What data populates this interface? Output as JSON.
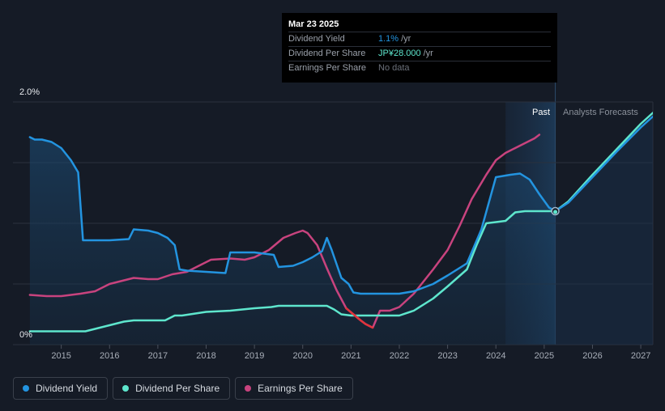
{
  "tooltip": {
    "date": "Mar 23 2025",
    "rows": [
      {
        "label": "Dividend Yield",
        "value": "1.1%",
        "unit": "/yr",
        "color": "#2394e0"
      },
      {
        "label": "Dividend Per Share",
        "value": "JP¥28.000",
        "unit": "/yr",
        "color": "#5ee6cd"
      },
      {
        "label": "Earnings Per Share",
        "value": "No data",
        "unit": "",
        "color": "#6b707a"
      }
    ]
  },
  "segments": {
    "past": "Past",
    "forecast": "Analysts Forecasts"
  },
  "legend": [
    {
      "label": "Dividend Yield",
      "color": "#2394e0"
    },
    {
      "label": "Dividend Per Share",
      "color": "#5ee6cd"
    },
    {
      "label": "Earnings Per Share",
      "color": "#c8437e"
    }
  ],
  "chart_data": {
    "type": "line",
    "title": "",
    "xlabel": "",
    "ylabel": "",
    "xlim": [
      2014.0,
      2027.25
    ],
    "ylim": [
      0,
      2.0
    ],
    "y_tick_labels": [
      "0%",
      "2.0%"
    ],
    "y_ticks": [
      0,
      2.0
    ],
    "x_ticks": [
      2015,
      2016,
      2017,
      2018,
      2019,
      2020,
      2021,
      2022,
      2023,
      2024,
      2025,
      2026,
      2027
    ],
    "x_tick_labels": [
      "2015",
      "2016",
      "2017",
      "2018",
      "2019",
      "2020",
      "2021",
      "2022",
      "2023",
      "2024",
      "2025",
      "2026",
      "2027"
    ],
    "gridlines": [
      0,
      0.5,
      1.0,
      1.5,
      2.0
    ],
    "forecast_start": 2025.23,
    "highlight_range": [
      2024.2,
      2025.23
    ],
    "marker": {
      "x": 2025.23,
      "y": 1.1
    },
    "series": [
      {
        "name": "Dividend Yield",
        "color": "#2394e0",
        "x": [
          2014.35,
          2014.45,
          2014.6,
          2014.8,
          2015.0,
          2015.2,
          2015.35,
          2015.45,
          2015.55,
          2016.0,
          2016.4,
          2016.5,
          2016.8,
          2017.0,
          2017.2,
          2017.35,
          2017.45,
          2017.6,
          2018.0,
          2018.4,
          2018.5,
          2019.0,
          2019.4,
          2019.5,
          2019.8,
          2020.0,
          2020.2,
          2020.4,
          2020.5,
          2020.6,
          2020.8,
          2020.95,
          2021.05,
          2021.2,
          2021.5,
          2022.0,
          2022.3,
          2022.7,
          2023.0,
          2023.4,
          2023.7,
          2024.0,
          2024.3,
          2024.5,
          2024.7,
          2024.9,
          2025.1,
          2025.23
        ],
        "y": [
          1.71,
          1.69,
          1.69,
          1.67,
          1.62,
          1.52,
          1.42,
          0.86,
          0.86,
          0.86,
          0.87,
          0.95,
          0.94,
          0.92,
          0.88,
          0.82,
          0.62,
          0.61,
          0.6,
          0.59,
          0.76,
          0.76,
          0.74,
          0.64,
          0.65,
          0.68,
          0.72,
          0.77,
          0.88,
          0.78,
          0.55,
          0.5,
          0.43,
          0.42,
          0.42,
          0.42,
          0.44,
          0.5,
          0.57,
          0.67,
          0.95,
          1.38,
          1.4,
          1.41,
          1.36,
          1.24,
          1.13,
          1.1
        ]
      },
      {
        "name": "Dividend Per Share",
        "color": "#5ee6cd",
        "x": [
          2014.35,
          2015.0,
          2015.5,
          2015.7,
          2016.0,
          2016.3,
          2016.5,
          2017.0,
          2017.15,
          2017.35,
          2017.5,
          2018.0,
          2018.5,
          2019.0,
          2019.35,
          2019.5,
          2020.0,
          2020.5,
          2020.65,
          2020.8,
          2021.0,
          2021.5,
          2022.0,
          2022.3,
          2022.7,
          2023.0,
          2023.4,
          2023.6,
          2023.8,
          2024.0,
          2024.2,
          2024.4,
          2024.6,
          2025.0,
          2025.23
        ],
        "y": [
          0.11,
          0.11,
          0.11,
          0.13,
          0.16,
          0.19,
          0.2,
          0.2,
          0.2,
          0.24,
          0.24,
          0.27,
          0.28,
          0.3,
          0.31,
          0.32,
          0.32,
          0.32,
          0.29,
          0.25,
          0.24,
          0.24,
          0.24,
          0.28,
          0.38,
          0.48,
          0.62,
          0.82,
          1.0,
          1.01,
          1.02,
          1.09,
          1.1,
          1.1,
          1.1
        ]
      },
      {
        "name": "Earnings Per Share",
        "color": "#c8437e",
        "x": [
          2014.35,
          2014.7,
          2015.0,
          2015.4,
          2015.7,
          2016.0,
          2016.2,
          2016.5,
          2016.8,
          2017.0,
          2017.3,
          2017.6,
          2017.9,
          2018.1,
          2018.5,
          2018.8,
          2019.0,
          2019.3,
          2019.6,
          2019.85,
          2020.0,
          2020.1,
          2020.3,
          2020.5,
          2020.7,
          2020.9,
          2021.05,
          2021.2,
          2021.3,
          2021.45,
          2021.6,
          2021.8,
          2022.0,
          2022.3,
          2022.7,
          2023.0,
          2023.25,
          2023.5,
          2023.8,
          2024.0,
          2024.2,
          2024.4,
          2024.6,
          2024.8,
          2024.9
        ],
        "y": [
          0.41,
          0.4,
          0.4,
          0.42,
          0.44,
          0.5,
          0.52,
          0.55,
          0.54,
          0.54,
          0.58,
          0.6,
          0.66,
          0.7,
          0.71,
          0.7,
          0.72,
          0.78,
          0.88,
          0.92,
          0.94,
          0.92,
          0.82,
          0.63,
          0.45,
          0.3,
          0.25,
          0.2,
          0.17,
          0.14,
          0.28,
          0.28,
          0.31,
          0.42,
          0.62,
          0.78,
          0.98,
          1.2,
          1.4,
          1.52,
          1.58,
          1.62,
          1.66,
          1.7,
          1.73
        ]
      },
      {
        "name": "Dividend Yield Forecast",
        "color": "#2394e0",
        "x": [
          2025.23,
          2025.5,
          2026.0,
          2026.5,
          2027.0,
          2027.25
        ],
        "y": [
          1.1,
          1.17,
          1.38,
          1.59,
          1.79,
          1.88
        ]
      },
      {
        "name": "Dividend Per Share Forecast",
        "color": "#5ee6cd",
        "x": [
          2025.23,
          2025.5,
          2026.0,
          2026.5,
          2027.0,
          2027.25
        ],
        "y": [
          1.1,
          1.18,
          1.4,
          1.61,
          1.82,
          1.91
        ]
      }
    ]
  }
}
